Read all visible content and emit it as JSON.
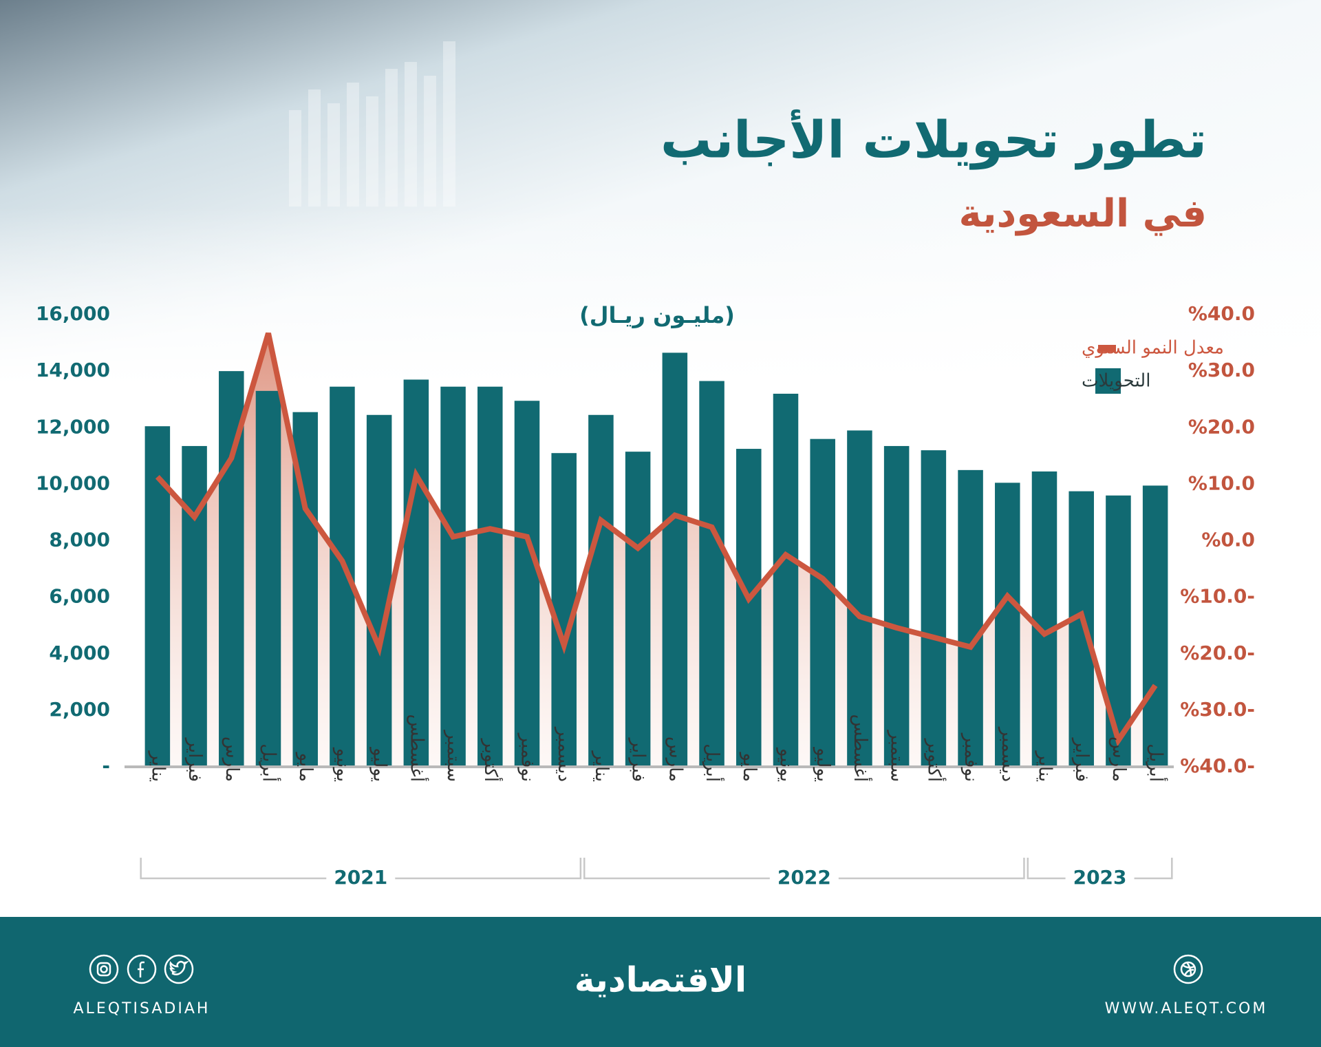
{
  "chart_data": {
    "type": "bar-line",
    "title": "تطور تحويلات الأجانب",
    "subtitle": "في السعودية",
    "unit_label": "(مليـون ريـال)",
    "categories": [
      "يناير",
      "فبراير",
      "مارس",
      "أبريل",
      "مايو",
      "يونيو",
      "يوليو",
      "أغسطس",
      "سبتمبر",
      "أكتوبر",
      "نوفمبر",
      "ديسمبر",
      "يناير",
      "فبراير",
      "مارس",
      "أبريل",
      "مايو",
      "يونيو",
      "يوليو",
      "أغسطس",
      "سبتمبر",
      "أكتوبر",
      "نوفمبر",
      "ديسمبر",
      "يناير",
      "فبراير",
      "مارس",
      "أبريل"
    ],
    "x_groups": [
      "2021",
      "2022",
      "2023"
    ],
    "series": [
      {
        "name": "التحويلات",
        "type": "bar",
        "color": "#116a72",
        "values": [
          12050,
          11350,
          14000,
          13300,
          12550,
          13450,
          12450,
          13700,
          13450,
          13450,
          12950,
          11100,
          12450,
          11150,
          14650,
          13650,
          11250,
          13200,
          11600,
          11900,
          11350,
          11200,
          10500,
          10050,
          10450,
          9750,
          9600,
          9950
        ]
      },
      {
        "name": "معدل النمو السنوي",
        "type": "line",
        "axis": "y2",
        "color": "#cc573f",
        "values": [
          11.3,
          4.2,
          14.6,
          36.7,
          5.7,
          -3.6,
          -18.9,
          11.6,
          0.7,
          2.1,
          0.7,
          -18.5,
          3.6,
          -1.3,
          4.5,
          2.4,
          -10.3,
          -2.5,
          -6.7,
          -13.4,
          -15.4,
          -17.1,
          -18.8,
          -9.8,
          -16.5,
          -13.0,
          -35.3,
          -25.6
        ]
      }
    ],
    "ylim": [
      0,
      16000
    ],
    "yticks": [
      {
        "value": 0,
        "label": "-"
      },
      {
        "value": 2000,
        "label": "2,000"
      },
      {
        "value": 4000,
        "label": "4,000"
      },
      {
        "value": 6000,
        "label": "6,000"
      },
      {
        "value": 8000,
        "label": "8,000"
      },
      {
        "value": 10000,
        "label": "10,000"
      },
      {
        "value": 12000,
        "label": "12,000"
      },
      {
        "value": 14000,
        "label": "14,000"
      },
      {
        "value": 16000,
        "label": "16,000"
      }
    ],
    "y2lim": [
      -40,
      40
    ],
    "y2ticks": [
      {
        "value": -40,
        "label": "%40.0-"
      },
      {
        "value": -30,
        "label": "%30.0-"
      },
      {
        "value": -20,
        "label": "%20.0-"
      },
      {
        "value": -10,
        "label": "%10.0-"
      },
      {
        "value": 0,
        "label": "%0.0"
      },
      {
        "value": 10,
        "label": "%10.0"
      },
      {
        "value": 20,
        "label": "%20.0"
      },
      {
        "value": 30,
        "label": "%30.0"
      },
      {
        "value": 40,
        "label": "%40.0"
      }
    ],
    "grid": false,
    "legend": "upper right"
  },
  "footer": {
    "logo": "الاقتصادية",
    "handle": "ALEQTISADIAH",
    "website": "WWW.ALEQT.COM"
  }
}
